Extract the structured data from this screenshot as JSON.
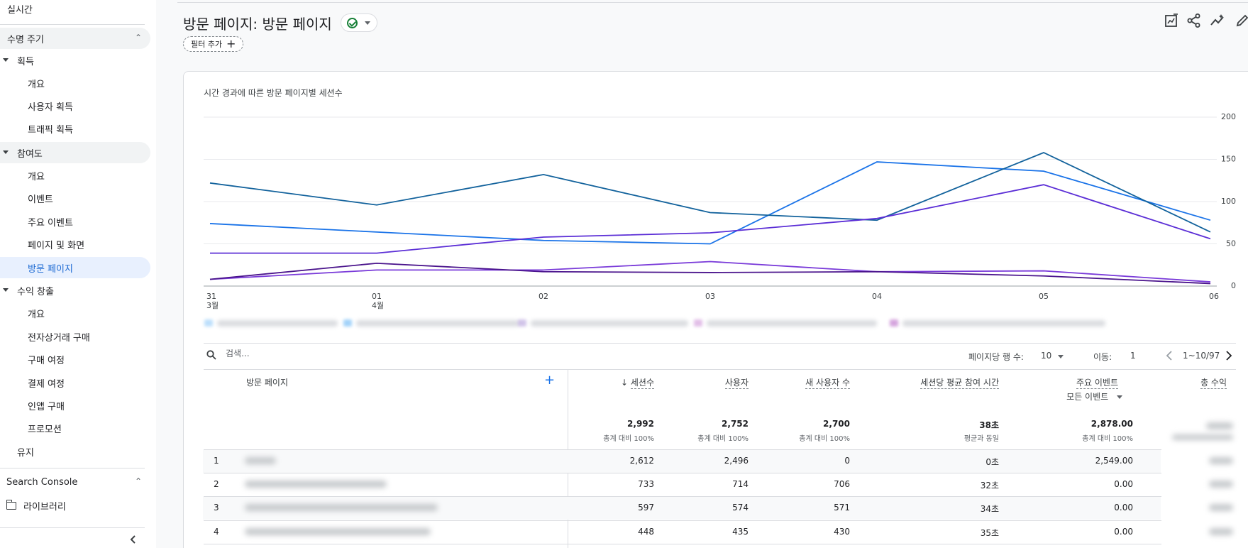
{
  "sidebar": {
    "realtime": "실시간",
    "lifecycle": "수명 주기",
    "acquisition": {
      "label": "획득",
      "items": [
        "개요",
        "사용자 획득",
        "트래픽 획득"
      ]
    },
    "engagement": {
      "label": "참여도",
      "items": [
        "개요",
        "이벤트",
        "주요 이벤트",
        "페이지 및 화면",
        "방문 페이지"
      ]
    },
    "monetization": {
      "label": "수익 창출",
      "items": [
        "개요",
        "전자상거래 구매",
        "구매 여정",
        "결제 여정",
        "인앱 구매",
        "프로모션"
      ]
    },
    "retention": "유지",
    "search_console": "Search Console",
    "library": "라이브러리"
  },
  "header": {
    "title": "방문 페이지: 방문 페이지",
    "filter_add": "필터 추가",
    "icons": [
      "edit-report-icon",
      "share-icon",
      "insights-icon",
      "pencil-icon"
    ]
  },
  "chart_data": {
    "type": "line",
    "title": "시간 경과에 따른 방문 페이지별 세션수",
    "x": [
      "31\n3월",
      "01\n4월",
      "02",
      "03",
      "04",
      "05",
      "06"
    ],
    "x_ticks": [
      "31",
      "01",
      "02",
      "03",
      "04",
      "05",
      "06"
    ],
    "x_sub": [
      "3월",
      "4월",
      "",
      "",
      "",
      "",
      ""
    ],
    "y_ticks": [
      "200",
      "150",
      "100",
      "50",
      "0"
    ],
    "ylim": [
      0,
      200
    ],
    "grid": true,
    "series": [
      {
        "color": "#1a73e8",
        "values": [
          74,
          64,
          54,
          50,
          147,
          136,
          78
        ]
      },
      {
        "color": "#12629c",
        "values": [
          122,
          96,
          132,
          87,
          78,
          158,
          64
        ]
      },
      {
        "color": "#5b2ed6",
        "values": [
          39,
          39,
          58,
          63,
          80,
          120,
          56
        ]
      },
      {
        "color": "#7a3bd9",
        "values": [
          8,
          19,
          19,
          29,
          17,
          18,
          5
        ]
      },
      {
        "color": "#4a148c",
        "values": [
          8,
          27,
          17,
          16,
          17,
          12,
          3
        ]
      }
    ]
  },
  "table": {
    "search_placeholder": "검색...",
    "rows_per_page_label": "페이지당 행 수:",
    "rows_per_page": "10",
    "goto_label": "이동:",
    "goto_value": "1",
    "range": "1~10/97",
    "first_col": "방문 페이지",
    "columns": [
      {
        "label": "세션수",
        "sorted": true,
        "total": "2,992",
        "sub": "총계 대비 100%"
      },
      {
        "label": "사용자",
        "total": "2,752",
        "sub": "총계 대비 100%"
      },
      {
        "label": "새 사용자 수",
        "total": "2,700",
        "sub": "총계 대비 100%"
      },
      {
        "label": "세션당 평균 참여 시간",
        "total": "38초",
        "sub": "평균과 동일"
      },
      {
        "label": "주요 이벤트",
        "label2": "모든 이벤트",
        "total": "2,878.00",
        "sub": "총계 대비 100%"
      },
      {
        "label": "총 수익"
      }
    ],
    "rows": [
      {
        "idx": "1",
        "values": [
          "2,612",
          "2,496",
          "0",
          "0초",
          "2,549.00"
        ]
      },
      {
        "idx": "2",
        "values": [
          "733",
          "714",
          "706",
          "32초",
          "0.00"
        ]
      },
      {
        "idx": "3",
        "values": [
          "597",
          "574",
          "571",
          "34초",
          "0.00"
        ]
      },
      {
        "idx": "4",
        "values": [
          "448",
          "435",
          "430",
          "35초",
          "0.00"
        ]
      }
    ]
  }
}
